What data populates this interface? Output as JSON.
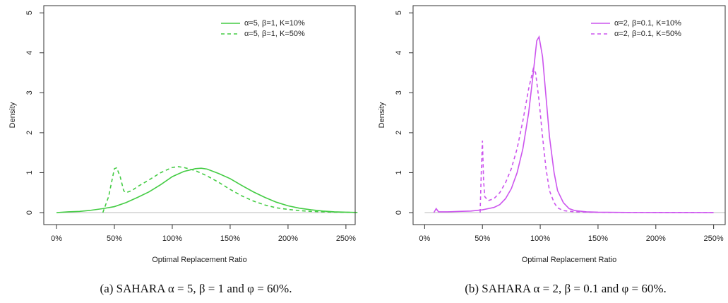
{
  "chart_data": [
    {
      "type": "line",
      "caption": "(a) SAHARA α = 5, β = 1 and φ = 60%.",
      "xlabel": "Optimal Replacement Ratio",
      "ylabel": "Density",
      "xlim": [
        -11,
        258
      ],
      "ylim": [
        -0.3,
        5.18
      ],
      "xticks": [
        {
          "value": 0,
          "label": "0%"
        },
        {
          "value": 50,
          "label": "50%"
        },
        {
          "value": 100,
          "label": "100%"
        },
        {
          "value": 150,
          "label": "150%"
        },
        {
          "value": 200,
          "label": "200%"
        },
        {
          "value": 250,
          "label": "250%"
        }
      ],
      "yticks": [
        0,
        1,
        2,
        3,
        4,
        5
      ],
      "legend": "top right",
      "zero_line": true,
      "series": [
        {
          "name": "α=5, β=1, K=10%",
          "color": "#44cc44",
          "dashed": false,
          "x": [
            0,
            10,
            20,
            30,
            40,
            50,
            60,
            70,
            80,
            90,
            100,
            110,
            120,
            125,
            130,
            140,
            150,
            160,
            170,
            180,
            190,
            200,
            210,
            220,
            230,
            240,
            250,
            260
          ],
          "values": [
            0,
            0.02,
            0.03,
            0.06,
            0.1,
            0.15,
            0.25,
            0.38,
            0.52,
            0.7,
            0.9,
            1.03,
            1.1,
            1.11,
            1.09,
            0.98,
            0.85,
            0.68,
            0.52,
            0.38,
            0.26,
            0.17,
            0.11,
            0.07,
            0.04,
            0.02,
            0.01,
            0.005
          ]
        },
        {
          "name": "α=5, β=1, K=50%",
          "color": "#44cc44",
          "dashed": true,
          "x": [
            40,
            45,
            50,
            52,
            55,
            58,
            60,
            65,
            70,
            80,
            90,
            100,
            105,
            110,
            120,
            130,
            140,
            150,
            160,
            170,
            180,
            190,
            200,
            210,
            220,
            240,
            260
          ],
          "values": [
            0,
            0.4,
            1.1,
            1.12,
            0.9,
            0.55,
            0.5,
            0.55,
            0.65,
            0.82,
            1.0,
            1.13,
            1.15,
            1.13,
            1.05,
            0.92,
            0.76,
            0.58,
            0.42,
            0.29,
            0.19,
            0.12,
            0.08,
            0.05,
            0.03,
            0.01,
            0.003
          ]
        }
      ]
    },
    {
      "type": "line",
      "caption": "(b) SAHARA α = 2, β = 0.1 and φ = 60%.",
      "xlabel": "Optimal Replacement Ratio",
      "ylabel": "Density",
      "xlim": [
        -10,
        260
      ],
      "ylim": [
        -0.3,
        5.18
      ],
      "xticks": [
        {
          "value": 0,
          "label": "0%"
        },
        {
          "value": 50,
          "label": "50%"
        },
        {
          "value": 100,
          "label": "100%"
        },
        {
          "value": 150,
          "label": "150%"
        },
        {
          "value": 200,
          "label": "200%"
        },
        {
          "value": 250,
          "label": "250%"
        }
      ],
      "yticks": [
        0,
        1,
        2,
        3,
        4,
        5
      ],
      "legend": "top right",
      "zero_line": true,
      "series": [
        {
          "name": "α=2, β=0.1, K=10%",
          "color": "#cc55ee",
          "dashed": false,
          "x": [
            8,
            10,
            12,
            20,
            30,
            40,
            50,
            55,
            60,
            65,
            70,
            75,
            80,
            85,
            90,
            94,
            97,
            99,
            102,
            105,
            108,
            112,
            115,
            120,
            125,
            130,
            140,
            150,
            175,
            200,
            250
          ],
          "values": [
            0,
            0.1,
            0.02,
            0.02,
            0.03,
            0.04,
            0.07,
            0.1,
            0.13,
            0.2,
            0.35,
            0.6,
            1.0,
            1.6,
            2.5,
            3.5,
            4.3,
            4.4,
            3.9,
            2.9,
            1.9,
            1.0,
            0.55,
            0.25,
            0.1,
            0.05,
            0.02,
            0.01,
            0.003,
            0.001,
            0
          ]
        },
        {
          "name": "α=2, β=0.1, K=50%",
          "color": "#cc55ee",
          "dashed": true,
          "x": [
            48,
            49,
            50,
            51,
            52,
            55,
            60,
            65,
            70,
            75,
            80,
            85,
            90,
            94,
            96,
            99,
            102,
            105,
            108,
            112,
            115,
            120,
            130,
            150,
            250
          ],
          "values": [
            0,
            1.0,
            1.8,
            0.8,
            0.4,
            0.3,
            0.35,
            0.5,
            0.75,
            1.1,
            1.6,
            2.3,
            3.1,
            3.6,
            3.5,
            2.8,
            1.9,
            1.1,
            0.55,
            0.25,
            0.12,
            0.05,
            0.02,
            0.005,
            0
          ]
        }
      ]
    }
  ]
}
